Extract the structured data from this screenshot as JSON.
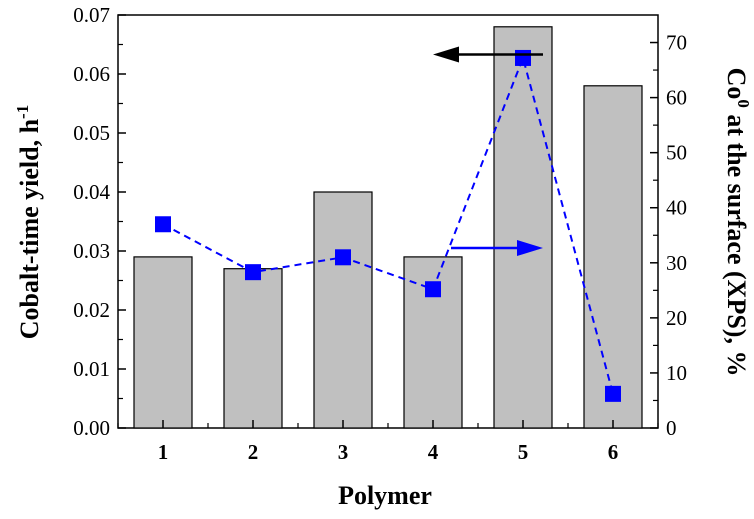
{
  "chart_data": {
    "type": "bar",
    "categories": [
      "1",
      "2",
      "3",
      "4",
      "5",
      "6"
    ],
    "series": [
      {
        "name": "Cobalt-time yield",
        "type": "bar",
        "axis": "left",
        "values": [
          0.029,
          0.027,
          0.04,
          0.029,
          0.068,
          0.058
        ],
        "color": "#c0c0c0"
      },
      {
        "name": "Co0 at the surface (XPS)",
        "type": "line",
        "axis": "right",
        "values": [
          37,
          28.3,
          31,
          25.2,
          67.2,
          6.2
        ],
        "color": "#0000ff",
        "line_style": "dashed",
        "marker": "square"
      }
    ],
    "xlabel": "Polymer",
    "ylabel": "Cobalt-time yield, h",
    "ylabel_superscript": "-1",
    "y2label": "Co",
    "y2label_superscript": "0",
    "y2label_rest": " at the surface (XPS), %",
    "ylim": [
      0,
      0.07
    ],
    "yticks": [
      "0.00",
      "0.01",
      "0.02",
      "0.03",
      "0.04",
      "0.05",
      "0.06",
      "0.07"
    ],
    "y2lim": [
      0,
      75
    ],
    "y2ticks": [
      "0",
      "10",
      "20",
      "30",
      "40",
      "50",
      "60",
      "70"
    ],
    "annotations": [
      {
        "kind": "arrow",
        "points_to": "left-axis",
        "color": "#000000",
        "near_category": "5",
        "level": 0.0633
      },
      {
        "kind": "arrow",
        "points_to": "right-axis",
        "color": "#0000ff",
        "near_category": "4-5",
        "level": 0.0305
      }
    ]
  }
}
